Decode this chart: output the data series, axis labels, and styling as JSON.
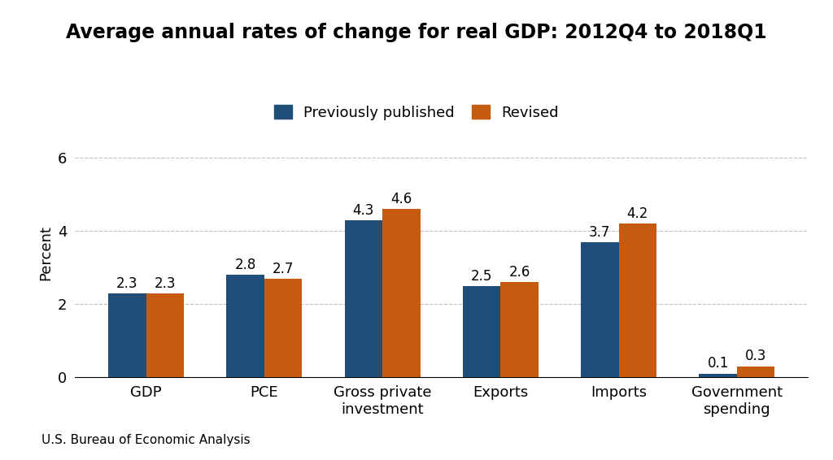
{
  "title": "Average annual rates of change for real GDP: 2012Q4 to 2018Q1",
  "categories": [
    "GDP",
    "PCE",
    "Gross private\ninvestment",
    "Exports",
    "Imports",
    "Government\nspending"
  ],
  "previously_published": [
    2.3,
    2.8,
    4.3,
    2.5,
    3.7,
    0.1
  ],
  "revised": [
    2.3,
    2.7,
    4.6,
    2.6,
    4.2,
    0.3
  ],
  "color_prev": "#1F4E79",
  "color_revised": "#C55A11",
  "ylabel": "Percent",
  "ylim": [
    0,
    6.8
  ],
  "yticks": [
    0,
    2,
    4,
    6
  ],
  "legend_labels": [
    "Previously published",
    "Revised"
  ],
  "footnote": "U.S. Bureau of Economic Analysis",
  "bar_width": 0.32,
  "title_fontsize": 17,
  "label_fontsize": 13,
  "tick_fontsize": 13,
  "annotation_fontsize": 12,
  "footnote_fontsize": 11,
  "background_color": "#FFFFFF"
}
